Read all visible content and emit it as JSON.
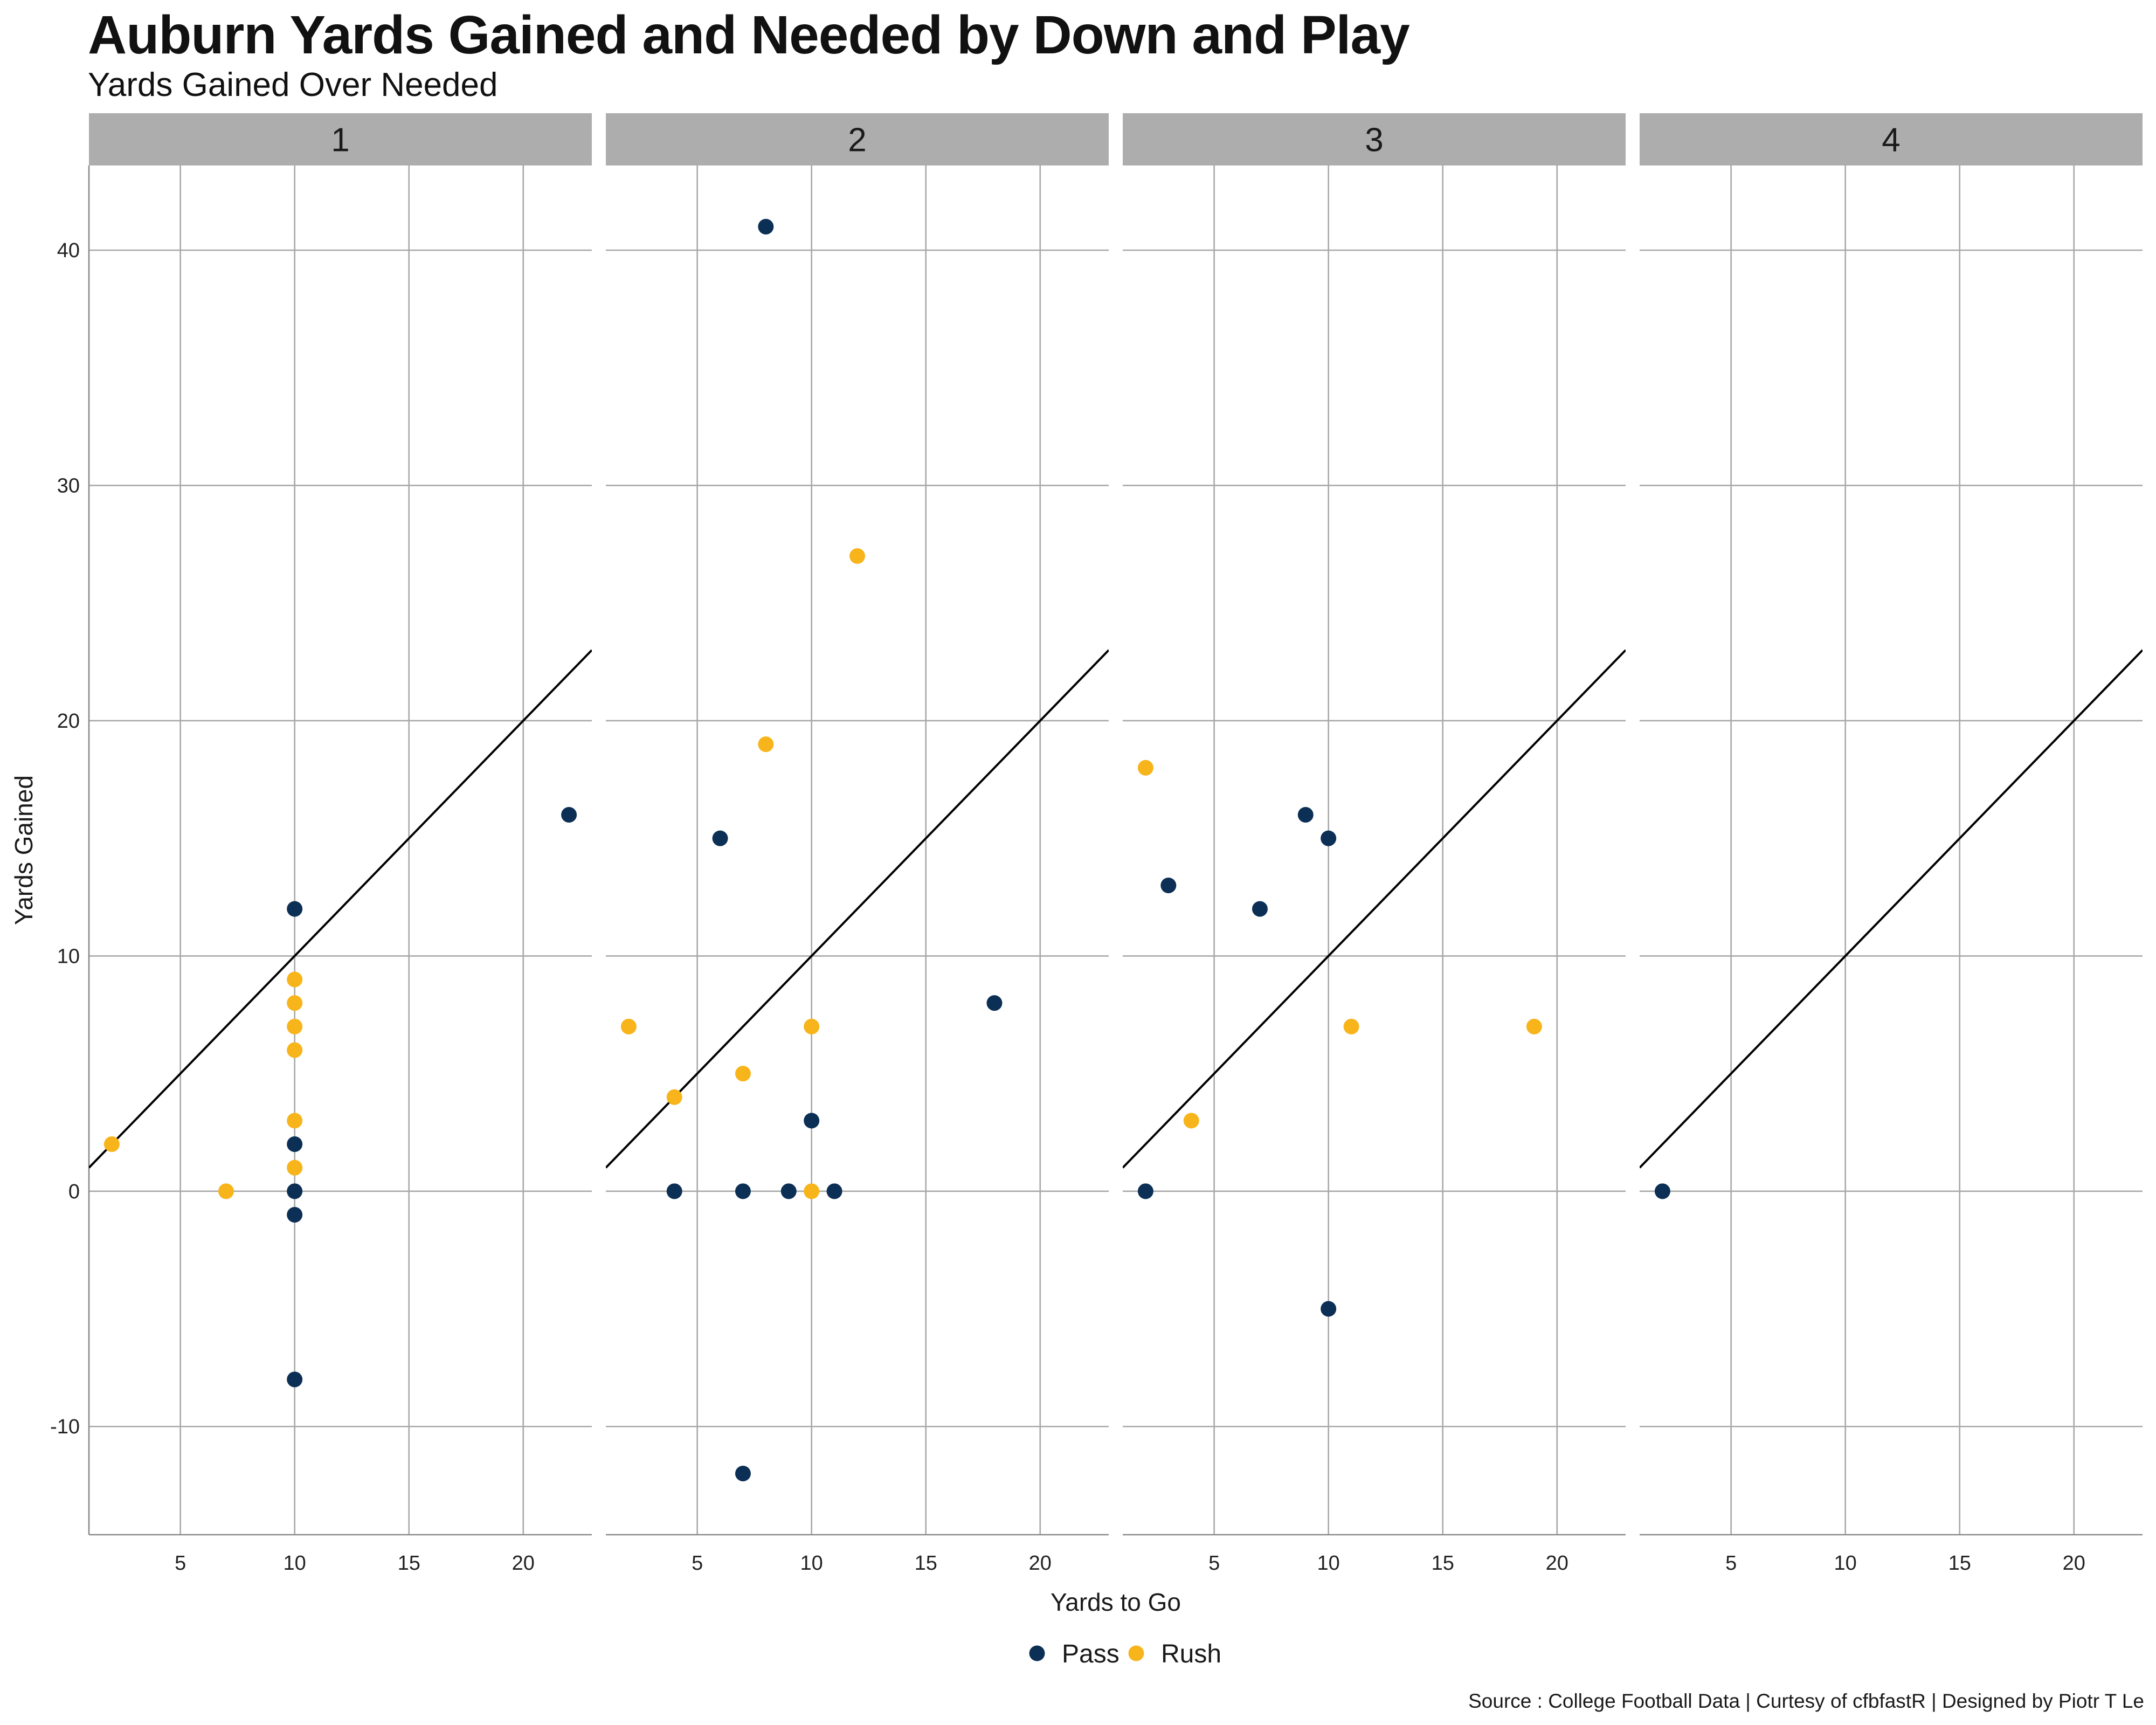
{
  "colors": {
    "pass": "#0c2f55",
    "rush": "#f8b41b",
    "strip": "#adadad",
    "grid": "#a8a8a8",
    "refline": "#000000"
  },
  "chart_data": {
    "type": "scatter",
    "title": "Auburn Yards Gained and Needed by Down and Play",
    "subtitle": "Yards Gained Over Needed",
    "xlabel": "Yards to Go",
    "ylabel": "Yards Gained",
    "caption": "Source : College Football Data | Curtesy of cfbfastR | Designed by Piotr T Le",
    "xlim": [
      1,
      23
    ],
    "ylim": [
      -14.6,
      43.6
    ],
    "xticks": [
      5,
      10,
      15,
      20
    ],
    "yticks": [
      -10,
      0,
      10,
      20,
      30,
      40
    ],
    "reference_line": "y = x",
    "legend": {
      "position": "bottom",
      "entries": [
        "Pass",
        "Rush"
      ]
    },
    "facets": [
      {
        "label": "1",
        "points": [
          {
            "x": 2,
            "y": 2,
            "type": "Rush"
          },
          {
            "x": 7,
            "y": 0,
            "type": "Rush"
          },
          {
            "x": 10,
            "y": 9,
            "type": "Rush"
          },
          {
            "x": 10,
            "y": 8,
            "type": "Rush"
          },
          {
            "x": 10,
            "y": 7,
            "type": "Rush"
          },
          {
            "x": 10,
            "y": 6,
            "type": "Rush"
          },
          {
            "x": 10,
            "y": 3,
            "type": "Rush"
          },
          {
            "x": 10,
            "y": 1,
            "type": "Rush"
          },
          {
            "x": 10,
            "y": 12,
            "type": "Pass"
          },
          {
            "x": 10,
            "y": 2,
            "type": "Pass"
          },
          {
            "x": 10,
            "y": 0,
            "type": "Pass"
          },
          {
            "x": 10,
            "y": -1,
            "type": "Pass"
          },
          {
            "x": 10,
            "y": -8,
            "type": "Pass"
          },
          {
            "x": 22,
            "y": 16,
            "type": "Pass"
          }
        ]
      },
      {
        "label": "2",
        "points": [
          {
            "x": 8,
            "y": 41,
            "type": "Pass"
          },
          {
            "x": 12,
            "y": 27,
            "type": "Rush"
          },
          {
            "x": 8,
            "y": 19,
            "type": "Rush"
          },
          {
            "x": 6,
            "y": 15,
            "type": "Pass"
          },
          {
            "x": 18,
            "y": 8,
            "type": "Pass"
          },
          {
            "x": 2,
            "y": 7,
            "type": "Rush"
          },
          {
            "x": 10,
            "y": 7,
            "type": "Rush"
          },
          {
            "x": 7,
            "y": 5,
            "type": "Rush"
          },
          {
            "x": 4,
            "y": 4,
            "type": "Rush"
          },
          {
            "x": 10,
            "y": 3,
            "type": "Pass"
          },
          {
            "x": 4,
            "y": 0,
            "type": "Pass"
          },
          {
            "x": 7,
            "y": 0,
            "type": "Pass"
          },
          {
            "x": 9,
            "y": 0,
            "type": "Pass"
          },
          {
            "x": 11,
            "y": 0,
            "type": "Pass"
          },
          {
            "x": 10,
            "y": 0,
            "type": "Rush"
          },
          {
            "x": 7,
            "y": -12,
            "type": "Pass"
          }
        ]
      },
      {
        "label": "3",
        "points": [
          {
            "x": 2,
            "y": 18,
            "type": "Rush"
          },
          {
            "x": 3,
            "y": 13,
            "type": "Pass"
          },
          {
            "x": 7,
            "y": 12,
            "type": "Pass"
          },
          {
            "x": 9,
            "y": 16,
            "type": "Pass"
          },
          {
            "x": 10,
            "y": 15,
            "type": "Pass"
          },
          {
            "x": 11,
            "y": 7,
            "type": "Rush"
          },
          {
            "x": 19,
            "y": 7,
            "type": "Rush"
          },
          {
            "x": 4,
            "y": 3,
            "type": "Rush"
          },
          {
            "x": 2,
            "y": 0,
            "type": "Pass"
          },
          {
            "x": 10,
            "y": -5,
            "type": "Pass"
          }
        ]
      },
      {
        "label": "4",
        "points": [
          {
            "x": 2,
            "y": 0,
            "type": "Pass"
          }
        ]
      }
    ]
  }
}
